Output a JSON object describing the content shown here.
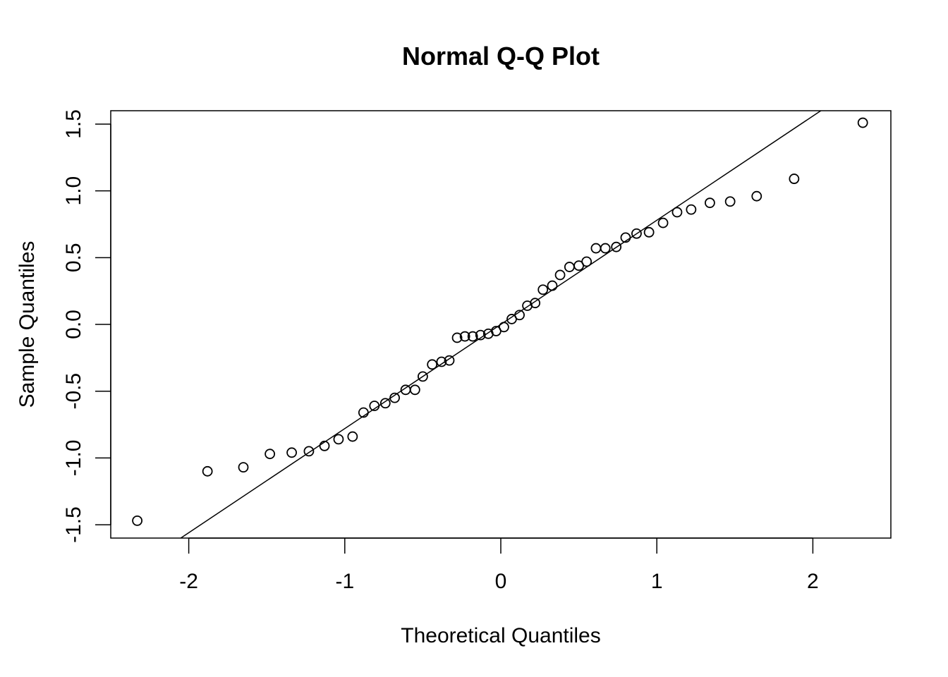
{
  "chart_data": {
    "type": "scatter",
    "title": "Normal Q-Q Plot",
    "xlabel": "Theoretical Quantiles",
    "ylabel": "Sample Quantiles",
    "xlim": [
      -2.5,
      2.5
    ],
    "ylim": [
      -1.6,
      1.6
    ],
    "x_ticks": [
      -2,
      -1,
      0,
      1,
      2
    ],
    "x_tick_labels": [
      "-2",
      "-1",
      "0",
      "1",
      "2"
    ],
    "y_ticks": [
      -1.5,
      -1.0,
      -0.5,
      0.0,
      0.5,
      1.0,
      1.5
    ],
    "y_tick_labels": [
      "-1.5",
      "-1.0",
      "-0.5",
      "0.0",
      "0.5",
      "1.0",
      "1.5"
    ],
    "grid": false,
    "marker": "open-circle",
    "reference_line": {
      "slope": 0.78,
      "intercept": 0.0
    },
    "points": [
      [
        -2.33,
        -1.47
      ],
      [
        -1.88,
        -1.1
      ],
      [
        -1.65,
        -1.07
      ],
      [
        -1.48,
        -0.97
      ],
      [
        -1.34,
        -0.96
      ],
      [
        -1.23,
        -0.95
      ],
      [
        -1.13,
        -0.91
      ],
      [
        -1.04,
        -0.86
      ],
      [
        -0.95,
        -0.84
      ],
      [
        -0.88,
        -0.66
      ],
      [
        -0.81,
        -0.61
      ],
      [
        -0.74,
        -0.59
      ],
      [
        -0.68,
        -0.55
      ],
      [
        -0.61,
        -0.49
      ],
      [
        -0.55,
        -0.49
      ],
      [
        -0.5,
        -0.39
      ],
      [
        -0.44,
        -0.3
      ],
      [
        -0.38,
        -0.28
      ],
      [
        -0.33,
        -0.27
      ],
      [
        -0.28,
        -0.1
      ],
      [
        -0.23,
        -0.09
      ],
      [
        -0.18,
        -0.09
      ],
      [
        -0.13,
        -0.08
      ],
      [
        -0.08,
        -0.07
      ],
      [
        -0.03,
        -0.05
      ],
      [
        0.02,
        -0.02
      ],
      [
        0.07,
        0.04
      ],
      [
        0.12,
        0.07
      ],
      [
        0.17,
        0.14
      ],
      [
        0.22,
        0.16
      ],
      [
        0.27,
        0.26
      ],
      [
        0.33,
        0.29
      ],
      [
        0.38,
        0.37
      ],
      [
        0.44,
        0.43
      ],
      [
        0.5,
        0.44
      ],
      [
        0.55,
        0.47
      ],
      [
        0.61,
        0.57
      ],
      [
        0.67,
        0.57
      ],
      [
        0.74,
        0.58
      ],
      [
        0.8,
        0.65
      ],
      [
        0.87,
        0.68
      ],
      [
        0.95,
        0.69
      ],
      [
        1.04,
        0.76
      ],
      [
        1.13,
        0.84
      ],
      [
        1.22,
        0.86
      ],
      [
        1.34,
        0.91
      ],
      [
        1.47,
        0.92
      ],
      [
        1.64,
        0.96
      ],
      [
        1.88,
        1.09
      ],
      [
        2.32,
        1.51
      ]
    ]
  }
}
